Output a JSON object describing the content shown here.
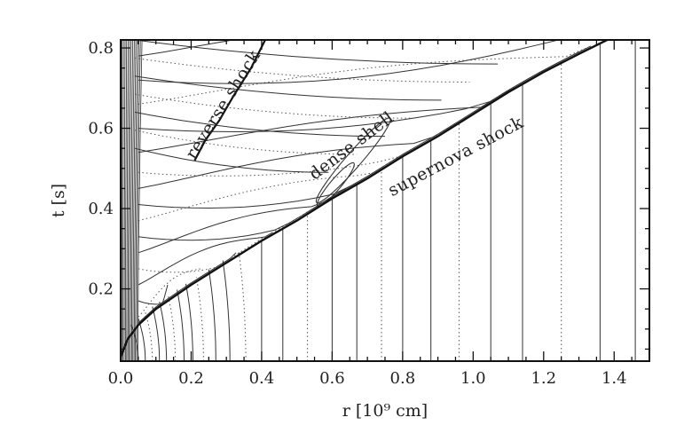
{
  "chart_data": {
    "type": "contour",
    "xlabel": "r [10⁹ cm]",
    "ylabel": "t [s]",
    "xlim": [
      0.0,
      1.5
    ],
    "ylim": [
      0.02,
      0.82
    ],
    "x_ticks": [
      "0.0",
      "0.2",
      "0.4",
      "0.6",
      "0.8",
      "1.0",
      "1.2",
      "1.4"
    ],
    "x_tick_values": [
      0.0,
      0.2,
      0.4,
      0.6,
      0.8,
      1.0,
      1.2,
      1.4
    ],
    "y_ticks": [
      "0.2",
      "0.4",
      "0.6",
      "0.8"
    ],
    "y_tick_values": [
      0.2,
      0.4,
      0.6,
      0.8
    ],
    "grid": false,
    "annotations": [
      {
        "text": "reverse shock",
        "x": 0.21,
        "y": 0.52
      },
      {
        "text": "dense shell",
        "x": 0.55,
        "y": 0.47
      },
      {
        "text": "supernova shock",
        "x": 0.77,
        "y": 0.43
      }
    ],
    "supernova_shock": {
      "x": [
        0.0,
        0.02,
        0.05,
        0.1,
        0.15,
        0.2,
        0.3,
        0.4,
        0.5,
        0.6,
        0.7,
        0.8,
        0.9,
        1.0,
        1.1,
        1.2,
        1.3,
        1.38
      ],
      "y": [
        0.03,
        0.075,
        0.11,
        0.15,
        0.18,
        0.21,
        0.265,
        0.32,
        0.37,
        0.425,
        0.475,
        0.53,
        0.58,
        0.635,
        0.69,
        0.74,
        0.785,
        0.82
      ]
    },
    "reverse_shock": {
      "x": [
        0.21,
        0.24,
        0.28,
        0.32,
        0.37,
        0.41
      ],
      "y": [
        0.52,
        0.57,
        0.62,
        0.68,
        0.75,
        0.82
      ]
    }
  }
}
